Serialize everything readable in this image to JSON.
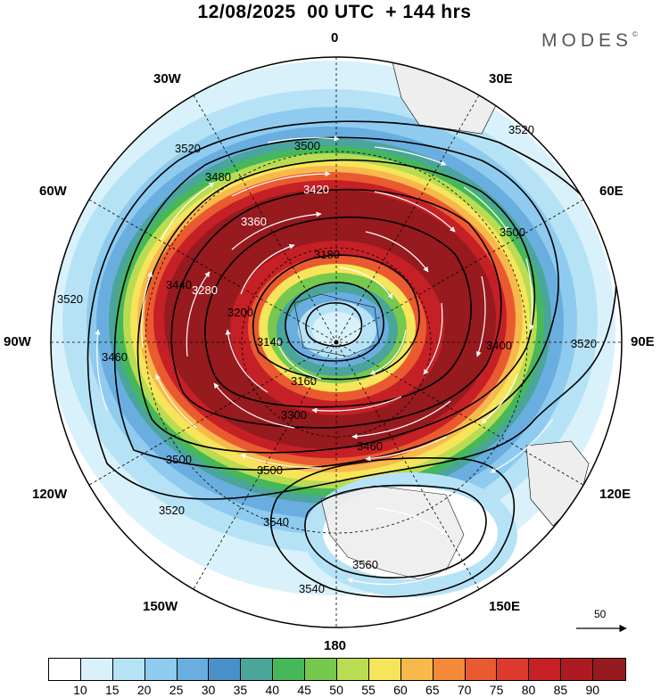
{
  "header": {
    "title": "12/08/2025  00 UTC  + 144 hrs",
    "brand": "MODES",
    "brand_mark": "©"
  },
  "map": {
    "projection": "south-polar-stereographic",
    "longitude_labels": [
      "0",
      "30E",
      "60E",
      "90E",
      "120E",
      "150E",
      "180",
      "150W",
      "120W",
      "90W",
      "60W",
      "30W"
    ],
    "contour_labels": [
      "3520",
      "3500",
      "3480",
      "3420",
      "3360",
      "3300",
      "3180",
      "3140",
      "3160",
      "3200",
      "3280",
      "3440",
      "3460",
      "3400",
      "3540",
      "3560"
    ],
    "reference_vector_label": "50"
  },
  "colorbar": {
    "colors": [
      "#ffffff",
      "#d9f1fb",
      "#b6e2f6",
      "#8ecbee",
      "#6aaee0",
      "#4a90c8",
      "#4aa59a",
      "#46b85a",
      "#76c84e",
      "#b9dc52",
      "#f6e55a",
      "#f8b94c",
      "#f4893a",
      "#ea5a30",
      "#dc3a2c",
      "#c52026",
      "#ad1a22",
      "#961a1e"
    ],
    "tick_labels": [
      "10",
      "15",
      "20",
      "25",
      "30",
      "35",
      "40",
      "45",
      "50",
      "55",
      "60",
      "65",
      "70",
      "75",
      "80",
      "85",
      "90"
    ]
  },
  "colors": {
    "ocean": "#ffffff",
    "land": "#eeeeee",
    "contour": "#000000",
    "vector": "#ffffff"
  }
}
